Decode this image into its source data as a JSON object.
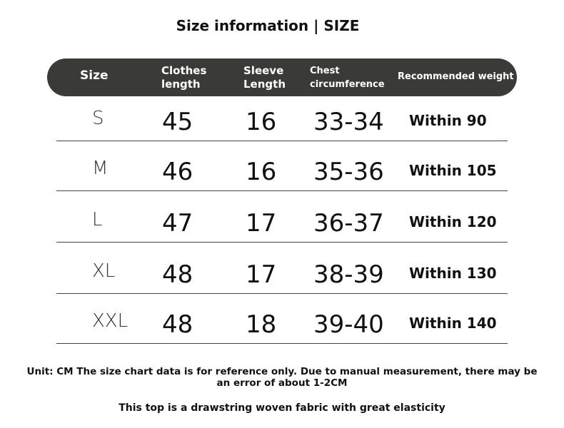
{
  "title": "Size information | SIZE",
  "headers": [
    "Size",
    "Clothes length",
    "Sleeve Length",
    "Chest circumference",
    "Recommended weight"
  ],
  "rows": [
    [
      "S",
      "45",
      "16",
      "33-34",
      "Within 90"
    ],
    [
      "M",
      "46",
      "16",
      "35-36",
      "Within 105"
    ],
    [
      "L",
      "47",
      "17",
      "36-37",
      "Within 120"
    ],
    [
      "XL",
      "48",
      "17",
      "38-39",
      "Within 130"
    ],
    [
      "XXL",
      "48",
      "18",
      "39-40",
      "Within 140"
    ]
  ],
  "note": "Unit: CM The size chart data is for reference only. Due to manual measurement, there may be an error of about 1-2CM",
  "fabric": "This top is a drawstring woven fabric with great elasticity"
}
